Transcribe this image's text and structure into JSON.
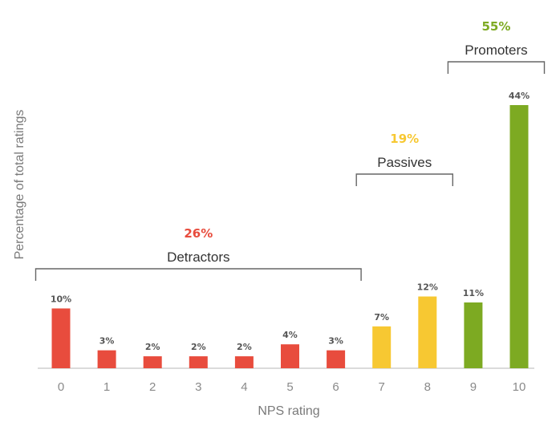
{
  "chart_data": {
    "type": "bar",
    "title": "",
    "xlabel": "NPS rating",
    "ylabel": "Percentage of total ratings",
    "categories": [
      "0",
      "1",
      "2",
      "3",
      "4",
      "5",
      "6",
      "7",
      "8",
      "9",
      "10"
    ],
    "values": [
      10,
      3,
      2,
      2,
      2,
      4,
      3,
      7,
      12,
      11,
      44
    ],
    "value_labels": [
      "10%",
      "3%",
      "2%",
      "2%",
      "2%",
      "4%",
      "3%",
      "7%",
      "12%",
      "11%",
      "44%"
    ],
    "ylim": [
      0,
      50
    ],
    "grid": false,
    "groups": [
      {
        "name": "Detractors",
        "percent": "26%",
        "from": 0,
        "to": 6,
        "color": "#e84c3d"
      },
      {
        "name": "Passives",
        "percent": "19%",
        "from": 7,
        "to": 8,
        "color": "#f7c832"
      },
      {
        "name": "Promoters",
        "percent": "55%",
        "from": 9,
        "to": 10,
        "color": "#7daa22"
      }
    ],
    "colors": {
      "detractor": "#e84c3d",
      "passive": "#f7c832",
      "promoter": "#7daa22"
    }
  }
}
